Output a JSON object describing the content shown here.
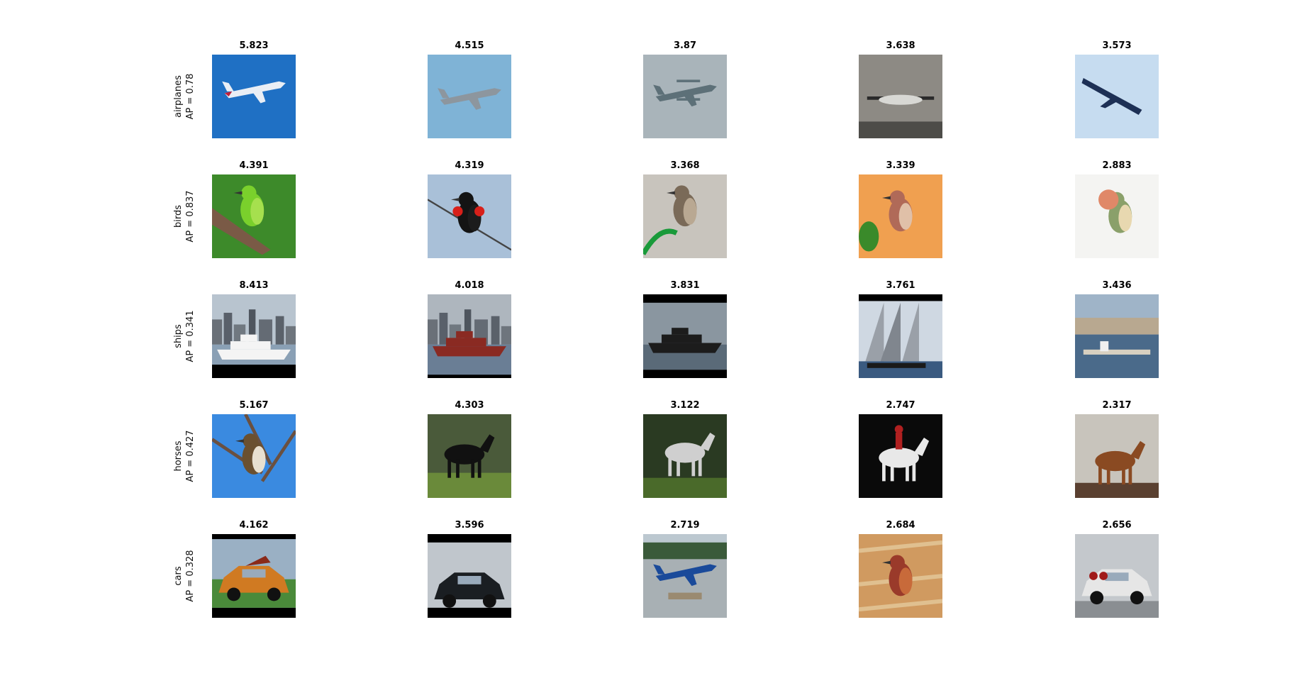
{
  "rows": [
    {
      "class_name": "airplanes",
      "ap": "AP = 0.78",
      "scores": [
        "5.823",
        "4.515",
        "3.87",
        "3.638",
        "3.573"
      ],
      "thumbs": [
        "airplane-photo",
        "jet-fighter-photo",
        "biplane-photo",
        "propeller-plane-photo",
        "jet-plane-photo"
      ]
    },
    {
      "class_name": "birds",
      "ap": "AP = 0.837",
      "scores": [
        "4.391",
        "4.319",
        "3.368",
        "3.339",
        "2.883"
      ],
      "thumbs": [
        "green-bird-photo",
        "blackbird-photo",
        "hummingbird-photo",
        "finch-photo",
        "lovebird-photo"
      ]
    },
    {
      "class_name": "ships",
      "ap": "AP = 0.341",
      "scores": [
        "8.413",
        "4.018",
        "3.831",
        "3.761",
        "3.436"
      ],
      "thumbs": [
        "cruise-ship-photo",
        "cargo-ship-photo",
        "ocean-liner-photo",
        "sailboat-photo",
        "harbor-photo"
      ]
    },
    {
      "class_name": "horses",
      "ap": "AP = 0.427",
      "scores": [
        "5.167",
        "4.303",
        "3.122",
        "2.747",
        "2.317"
      ],
      "thumbs": [
        "perched-bird-photo",
        "black-horse-photo",
        "white-horse-photo",
        "rider-horse-photo",
        "grazing-horse-photo"
      ]
    },
    {
      "class_name": "cars",
      "ap": "AP = 0.328",
      "scores": [
        "4.162",
        "3.596",
        "2.719",
        "2.684",
        "2.656"
      ],
      "thumbs": [
        "orange-car-photo",
        "black-car-photo",
        "seaplane-photo",
        "red-bird-photo",
        "white-car-photo"
      ]
    }
  ],
  "colors": {
    "background": "#ffffff",
    "label_text": "#111111",
    "score_text": "#000000"
  }
}
